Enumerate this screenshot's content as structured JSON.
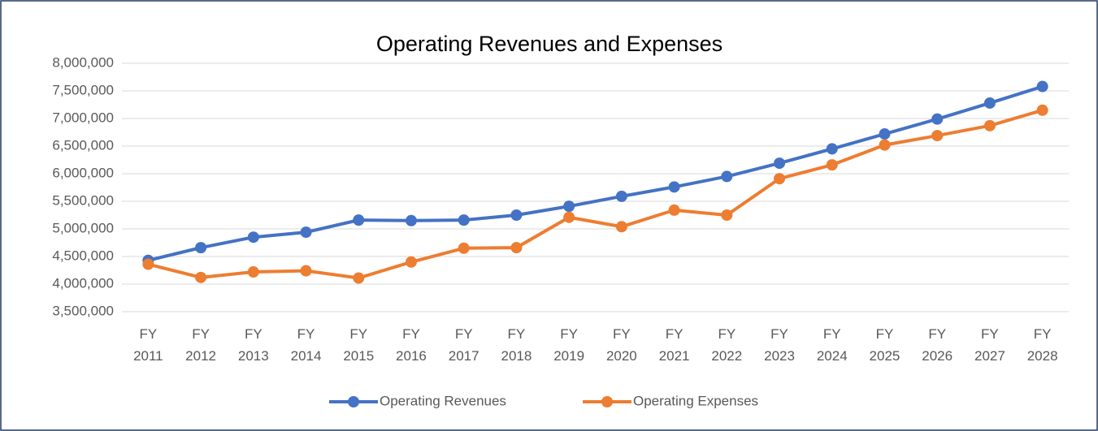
{
  "chart_data": {
    "type": "line",
    "title": "Operating Revenues and Expenses",
    "categories": [
      "FY 2011",
      "FY 2012",
      "FY 2013",
      "FY 2014",
      "FY 2015",
      "FY 2016",
      "FY 2017",
      "FY 2018",
      "FY 2019",
      "FY 2020",
      "FY 2021",
      "FY 2022",
      "FY 2023",
      "FY 2024",
      "FY 2025",
      "FY 2026",
      "FY 2027",
      "FY 2028"
    ],
    "series": [
      {
        "name": "Operating Revenues",
        "color": "#4472c4",
        "values": [
          4430000,
          4660000,
          4850000,
          4940000,
          5160000,
          5150000,
          5160000,
          5250000,
          5410000,
          5590000,
          5760000,
          5950000,
          6190000,
          6450000,
          6720000,
          6990000,
          7280000,
          7580000
        ]
      },
      {
        "name": "Operating Expenses",
        "color": "#ed7d31",
        "values": [
          4360000,
          4120000,
          4220000,
          4240000,
          4110000,
          4400000,
          4650000,
          4660000,
          5210000,
          5040000,
          5340000,
          5250000,
          5910000,
          6160000,
          6520000,
          6690000,
          6870000,
          7150000
        ]
      }
    ],
    "ylim": [
      3500000,
      8000000
    ],
    "yticks": [
      {
        "value": 3500000,
        "label": "3,500,000"
      },
      {
        "value": 4000000,
        "label": "4,000,000"
      },
      {
        "value": 4500000,
        "label": "4,500,000"
      },
      {
        "value": 5000000,
        "label": "5,000,000"
      },
      {
        "value": 5500000,
        "label": "5,500,000"
      },
      {
        "value": 6000000,
        "label": "6,000,000"
      },
      {
        "value": 6500000,
        "label": "6,500,000"
      },
      {
        "value": 7000000,
        "label": "7,000,000"
      },
      {
        "value": 7500000,
        "label": "7,500,000"
      },
      {
        "value": 8000000,
        "label": "8,000,000"
      }
    ],
    "grid": true,
    "legend": "bottom"
  }
}
